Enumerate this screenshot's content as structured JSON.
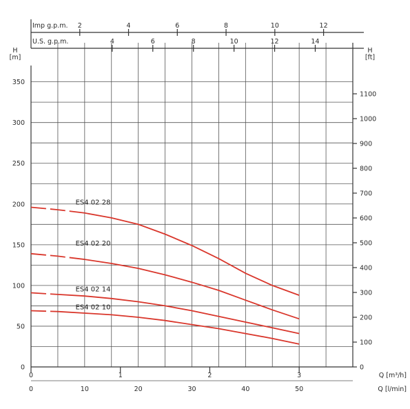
{
  "chart_data": {
    "type": "line",
    "colors": {
      "curve": "#d9362b",
      "grid": "#555555"
    },
    "y_left": {
      "label_top": "H",
      "label_unit": "[m]",
      "ticks": [
        0,
        50,
        100,
        150,
        200,
        250,
        300,
        350
      ],
      "range": [
        0,
        370
      ]
    },
    "y_right": {
      "label_top": "H",
      "label_unit": "[ft]",
      "ticks": [
        0,
        100,
        200,
        300,
        400,
        500,
        600,
        700,
        800,
        900,
        1000,
        1100
      ]
    },
    "x_lpm": {
      "label": "Q [l/min]",
      "ticks": [
        0,
        10,
        20,
        30,
        40,
        50
      ],
      "range": [
        0,
        60
      ]
    },
    "x_m3h": {
      "label": "Q [m³/h]",
      "ticks": [
        0,
        1,
        2,
        3
      ]
    },
    "x_us_gpm": {
      "label": "U.S. g.p.m.",
      "ticks": [
        4,
        6,
        8,
        10,
        12,
        14
      ]
    },
    "x_imp_gpm": {
      "label": "Imp g.p.m.",
      "ticks": [
        2,
        4,
        6,
        8,
        10,
        12
      ]
    },
    "series": [
      {
        "name": "ES4     02     28",
        "dashed_until": 13,
        "x": [
          0,
          5,
          10,
          15,
          20,
          25,
          30,
          35,
          40,
          45,
          50
        ],
        "y": [
          196,
          193,
          189,
          183,
          175,
          163,
          149,
          133,
          115,
          100,
          88
        ]
      },
      {
        "name": "ES4     02     20",
        "dashed_until": 13,
        "x": [
          0,
          5,
          10,
          15,
          20,
          25,
          30,
          35,
          40,
          45,
          50
        ],
        "y": [
          139,
          136,
          132,
          127,
          121,
          113,
          104,
          94,
          82,
          70,
          59
        ]
      },
      {
        "name": "ES4   02   14",
        "dashed_until": 9,
        "x": [
          0,
          5,
          10,
          15,
          20,
          25,
          30,
          35,
          40,
          45,
          50
        ],
        "y": [
          91,
          89,
          87,
          84,
          80,
          75,
          69,
          62,
          55,
          48,
          41
        ]
      },
      {
        "name": "ES4   02   10",
        "dashed_until": 9,
        "x": [
          0,
          5,
          10,
          15,
          20,
          25,
          30,
          35,
          40,
          45,
          50
        ],
        "y": [
          69,
          68,
          66,
          64,
          61,
          57,
          52,
          47,
          41,
          35,
          28
        ]
      }
    ]
  }
}
